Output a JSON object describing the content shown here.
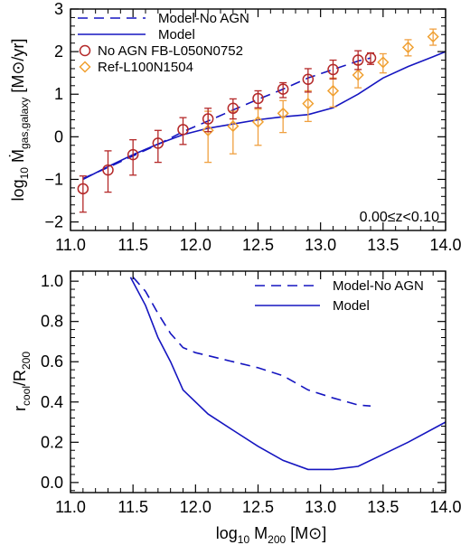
{
  "colors": {
    "model": "#1515c0",
    "no_agn_points": "#b42828",
    "ref_points": "#f0a030",
    "ref_errors": "#f0a040",
    "axis": "#000000"
  },
  "chart_data": [
    {
      "type": "line",
      "panel": "top",
      "ylabel": "log₁₀ Ṁgas,galaxy [M⊙/yr]",
      "ylabel_parts": {
        "prefix": "log",
        "sub": "10",
        "main": "Ṁ",
        "main_sub": "gas,galaxy",
        "unit": "[M⊙/yr]"
      },
      "xlim": [
        11.0,
        14.0
      ],
      "ylim": [
        -2.2,
        3.0
      ],
      "xticks": [
        "11.0",
        "11.5",
        "12.0",
        "12.5",
        "13.0",
        "13.5",
        "14.0"
      ],
      "yticks": [
        "-2",
        "-1",
        "0",
        "1",
        "2",
        "3"
      ],
      "annotation": "0.00≤z<0.10",
      "series": [
        {
          "name": "Model-No AGN",
          "style": "dashed",
          "x": [
            11.1,
            11.3,
            11.5,
            11.7,
            11.9,
            12.1,
            12.3,
            12.5,
            12.7,
            12.9,
            13.1,
            13.3,
            13.4
          ],
          "y": [
            -0.98,
            -0.72,
            -0.45,
            -0.18,
            0.12,
            0.37,
            0.63,
            0.88,
            1.12,
            1.38,
            1.58,
            1.78,
            1.85
          ]
        },
        {
          "name": "Model",
          "style": "solid",
          "x": [
            11.1,
            11.3,
            11.5,
            11.7,
            11.9,
            12.1,
            12.3,
            12.5,
            12.7,
            12.9,
            13.1,
            13.3,
            13.5,
            13.7,
            13.9,
            14.0
          ],
          "y": [
            -1.0,
            -0.7,
            -0.42,
            -0.17,
            0.05,
            0.2,
            0.3,
            0.4,
            0.47,
            0.52,
            0.68,
            1.0,
            1.38,
            1.65,
            1.88,
            2.0
          ]
        },
        {
          "name": "No AGN FB-L050N0752",
          "style": "circle",
          "x": [
            11.1,
            11.3,
            11.5,
            11.7,
            11.9,
            12.1,
            12.3,
            12.5,
            12.7,
            12.9,
            13.1,
            13.3,
            13.4
          ],
          "y": [
            -1.22,
            -0.78,
            -0.42,
            -0.15,
            0.17,
            0.42,
            0.67,
            0.9,
            1.12,
            1.35,
            1.58,
            1.8,
            1.85
          ],
          "err_low": [
            0.55,
            0.52,
            0.48,
            0.45,
            0.35,
            0.3,
            0.25,
            0.22,
            0.2,
            0.3,
            0.22,
            0.22,
            0.15
          ],
          "err_high": [
            0.3,
            0.45,
            0.35,
            0.3,
            0.28,
            0.25,
            0.22,
            0.18,
            0.15,
            0.25,
            0.22,
            0.22,
            0.12
          ]
        },
        {
          "name": "Ref-L100N1504",
          "style": "diamond",
          "x": [
            12.1,
            12.3,
            12.5,
            12.7,
            12.9,
            13.1,
            13.3,
            13.5,
            13.7,
            13.9
          ],
          "y": [
            0.15,
            0.25,
            0.35,
            0.55,
            0.78,
            1.08,
            1.45,
            1.75,
            2.1,
            2.35
          ],
          "err_low": [
            0.75,
            0.65,
            0.55,
            0.45,
            0.42,
            0.38,
            0.3,
            0.25,
            0.2,
            0.2
          ],
          "err_high": [
            0.45,
            0.35,
            0.3,
            0.3,
            0.3,
            0.3,
            0.25,
            0.2,
            0.18,
            0.18
          ]
        }
      ],
      "legend": "top-left"
    },
    {
      "type": "line",
      "panel": "bottom",
      "xlabel": "log₁₀ M200 [M⊙]",
      "xlabel_parts": {
        "prefix": "log",
        "sub": "10",
        "main": "M",
        "main_sub": "200",
        "unit": "[M⊙]"
      },
      "ylabel": "rcool/R200",
      "ylabel_parts": {
        "a": "r",
        "a_sub": "cool",
        "b": "/R",
        "b_sub": "200"
      },
      "xlim": [
        11.0,
        14.0
      ],
      "ylim": [
        -0.05,
        1.05
      ],
      "xticks": [
        "11.0",
        "11.5",
        "12.0",
        "12.5",
        "13.0",
        "13.5",
        "14.0"
      ],
      "yticks": [
        "0.0",
        "0.2",
        "0.4",
        "0.6",
        "0.8",
        "1.0"
      ],
      "series": [
        {
          "name": "Model-No AGN",
          "style": "dashed",
          "x": [
            11.5,
            11.6,
            11.7,
            11.8,
            11.9,
            12.0,
            12.1,
            12.3,
            12.5,
            12.7,
            12.9,
            13.1,
            13.3,
            13.4
          ],
          "y": [
            1.02,
            0.95,
            0.84,
            0.74,
            0.67,
            0.645,
            0.63,
            0.6,
            0.57,
            0.53,
            0.46,
            0.42,
            0.385,
            0.38
          ]
        },
        {
          "name": "Model",
          "style": "solid",
          "x": [
            11.48,
            11.6,
            11.7,
            11.8,
            11.9,
            12.1,
            12.3,
            12.5,
            12.7,
            12.9,
            13.1,
            13.3,
            13.5,
            13.7,
            14.0
          ],
          "y": [
            1.02,
            0.88,
            0.72,
            0.6,
            0.46,
            0.34,
            0.26,
            0.18,
            0.11,
            0.065,
            0.065,
            0.08,
            0.14,
            0.2,
            0.3
          ]
        }
      ],
      "legend": "top-right"
    }
  ]
}
